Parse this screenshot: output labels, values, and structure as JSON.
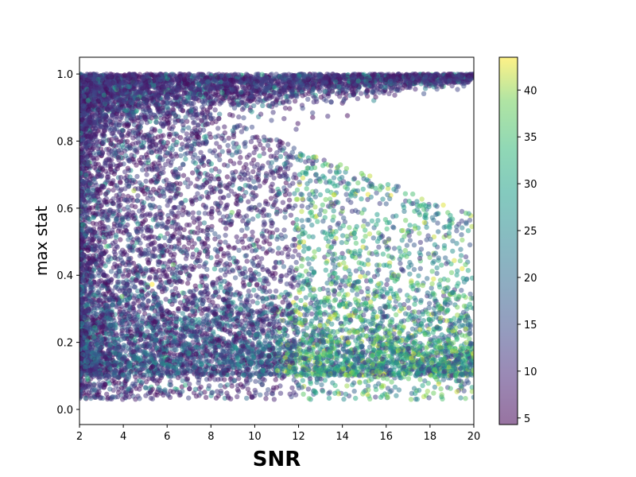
{
  "chart_data": {
    "type": "scatter",
    "title": "",
    "xlabel": "SNR",
    "ylabel": "max stat",
    "xlim": [
      2,
      20
    ],
    "ylim": [
      -0.045,
      1.05
    ],
    "xticks": [
      2,
      4,
      6,
      8,
      10,
      12,
      14,
      16,
      18,
      20
    ],
    "yticks": [
      0.0,
      0.2,
      0.4,
      0.6,
      0.8,
      1.0
    ],
    "grid": false,
    "colorbar": {
      "colormap": "viridis",
      "range": [
        4.3,
        43.5
      ],
      "ticks": [
        5,
        10,
        15,
        20,
        25,
        30,
        35,
        40
      ]
    },
    "marker_alpha": 0.5,
    "point_count": 12000,
    "series": [
      {
        "description": "points colored by colorbar value",
        "points": [
          [
            2.4,
            0.95,
            8
          ],
          [
            3.1,
            0.82,
            6
          ],
          [
            4.2,
            0.62,
            9
          ],
          [
            5.5,
            0.41,
            7
          ],
          [
            6.8,
            0.27,
            11
          ],
          [
            8.3,
            0.99,
            6
          ],
          [
            9.6,
            0.73,
            8
          ],
          [
            11.2,
            0.52,
            12
          ],
          [
            12.7,
            0.31,
            18
          ],
          [
            13.5,
            0.14,
            30
          ],
          [
            14.8,
            0.08,
            35
          ],
          [
            15.9,
            0.43,
            28
          ],
          [
            16.6,
            0.23,
            40
          ],
          [
            17.4,
            0.62,
            25
          ],
          [
            18.3,
            0.09,
            38
          ],
          [
            19.2,
            0.33,
            34
          ],
          [
            19.8,
            0.99,
            12
          ],
          [
            15.1,
            0.97,
            14
          ],
          [
            10.4,
            0.18,
            22
          ],
          [
            7.3,
            0.06,
            24
          ]
        ]
      }
    ]
  }
}
